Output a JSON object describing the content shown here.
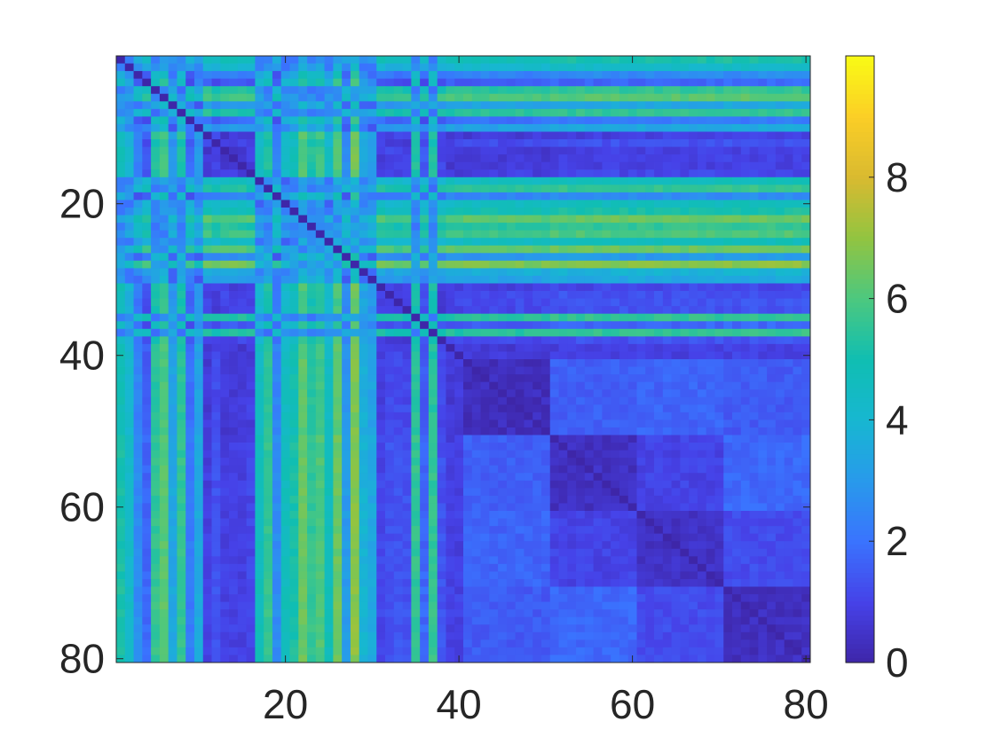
{
  "chart_data": {
    "type": "heatmap",
    "title": "",
    "xlabel": "",
    "ylabel": "",
    "n": 80,
    "xlim": [
      0.5,
      80.5
    ],
    "ylim": [
      0.5,
      80.5
    ],
    "y_direction": "reverse",
    "x_ticks": [
      "20",
      "40",
      "60",
      "80"
    ],
    "y_ticks": [
      "20",
      "40",
      "60",
      "80"
    ],
    "colorbar": {
      "min": 0,
      "max": 10,
      "ticks": [
        "0",
        "2",
        "4",
        "6",
        "8"
      ]
    },
    "colormap": "parula",
    "colors": {
      "min_color": "#3e26a8",
      "max_color": "#f9fb15",
      "axis_color": "#262626",
      "background": "#ffffff"
    },
    "feature_strength": [
      6,
      5,
      3,
      2,
      6.5,
      7.2,
      4,
      6.5,
      2.5,
      4,
      1,
      1.5,
      1,
      1,
      1,
      1.2,
      5.5,
      6.5,
      3,
      5.5,
      6,
      7.5,
      6.5,
      7,
      5.5,
      7.5,
      3.5,
      8,
      4.5,
      4,
      1.2,
      1.5,
      1.5,
      1.5,
      6.5,
      2,
      6.5,
      1.5,
      1,
      1,
      0.9,
      0.9,
      0.9,
      0.9,
      0.9,
      0.9,
      0.9,
      0.9,
      0.9,
      0.9,
      0.6,
      0.6,
      0.6,
      0.6,
      0.6,
      0.6,
      0.6,
      0.6,
      0.6,
      0.6,
      0.6,
      0.6,
      0.6,
      0.6,
      0.6,
      0.6,
      0.6,
      0.6,
      0.6,
      0.6,
      0.5,
      0.5,
      0.5,
      0.5,
      0.5,
      0.5,
      0.5,
      0.5,
      0.5,
      0.5
    ],
    "cluster_levels": [
      [
        0.3,
        1.6,
        1.7,
        1.5
      ],
      [
        1.6,
        0.4,
        1.0,
        1.8
      ],
      [
        1.7,
        1.0,
        0.45,
        1.2
      ],
      [
        1.5,
        1.8,
        1.2,
        0.35
      ]
    ],
    "cluster_starts": [
      41,
      51,
      61,
      71
    ]
  }
}
